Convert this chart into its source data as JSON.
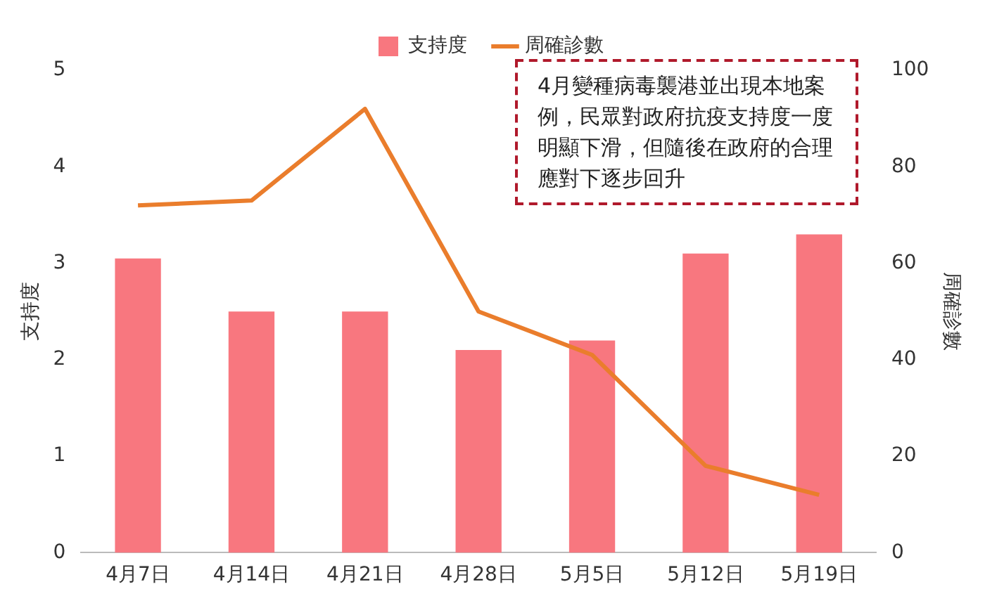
{
  "chart_data": {
    "type": "bar",
    "categories": [
      "4月7日",
      "4月14日",
      "4月21日",
      "4月28日",
      "5月5日",
      "5月12日",
      "5月19日"
    ],
    "series": [
      {
        "name": "支持度",
        "color": "#f8777f",
        "values": [
          3.05,
          2.5,
          2.5,
          2.1,
          2.2,
          3.1,
          3.3
        ]
      },
      {
        "name": "周確診數",
        "type": "line",
        "axis": "y2",
        "color": "#ea7d2c",
        "values": [
          72,
          73,
          92,
          50,
          41,
          18,
          12
        ]
      }
    ],
    "ylabel": "支持度",
    "y2label": "周確診數",
    "ylim": [
      0,
      5
    ],
    "yticks": [
      0,
      1,
      2,
      3,
      4,
      5
    ],
    "y2lim": [
      0,
      100
    ],
    "y2ticks": [
      0,
      20,
      40,
      60,
      80,
      100
    ],
    "legend": "top",
    "grid": false,
    "marker": "none",
    "annotations": [
      "4月變種病毒襲港並出現本地案例，民眾對政府抗疫支持度一度明顯下滑，但隨後在政府的合理應對下逐步回升"
    ]
  }
}
